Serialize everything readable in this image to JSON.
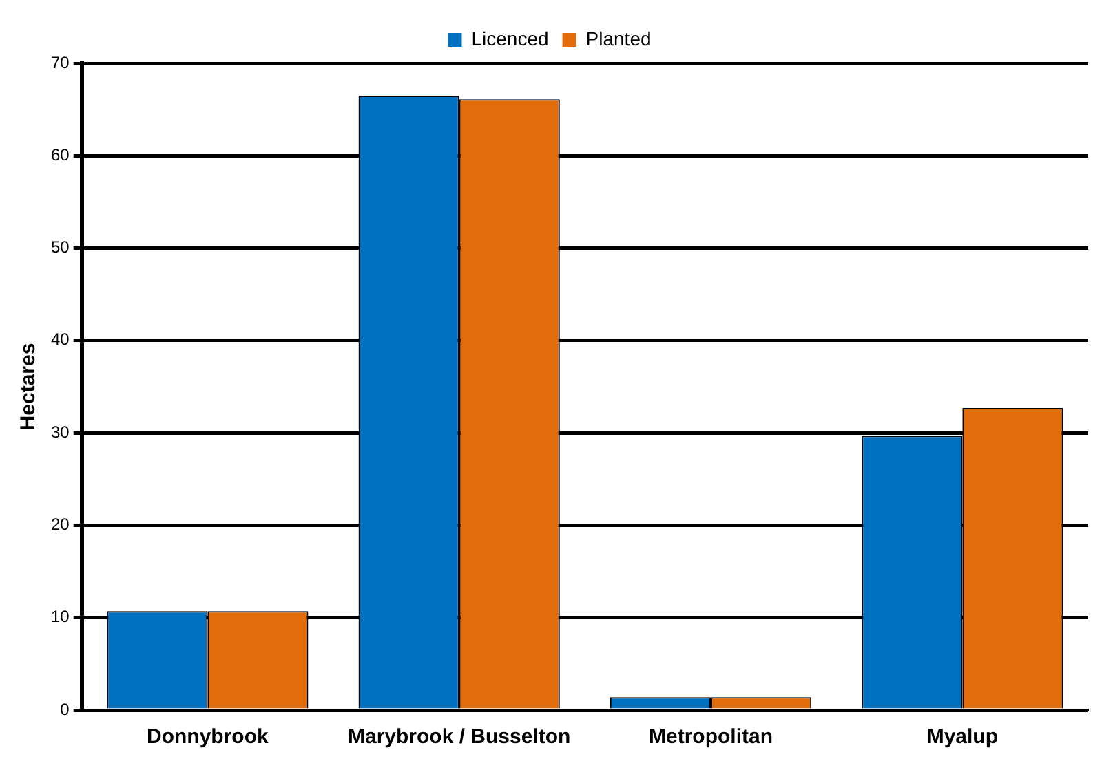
{
  "chart_data": {
    "type": "bar",
    "ylabel": "Hectares",
    "categories": [
      "Donnybrook",
      "Marybrook / Busselton",
      "Metropolitan",
      "Myalup"
    ],
    "series": [
      {
        "name": "Licenced",
        "color": "#0070c0",
        "values": [
          10.7,
          66.5,
          1.4,
          29.7
        ]
      },
      {
        "name": "Planted",
        "color": "#e36c0a",
        "values": [
          10.7,
          66.1,
          1.4,
          32.7
        ]
      }
    ],
    "ylim": [
      0,
      70
    ],
    "yticks": [
      0,
      10,
      20,
      30,
      40,
      50,
      60,
      70
    ],
    "grid": "y",
    "legend": "top"
  }
}
